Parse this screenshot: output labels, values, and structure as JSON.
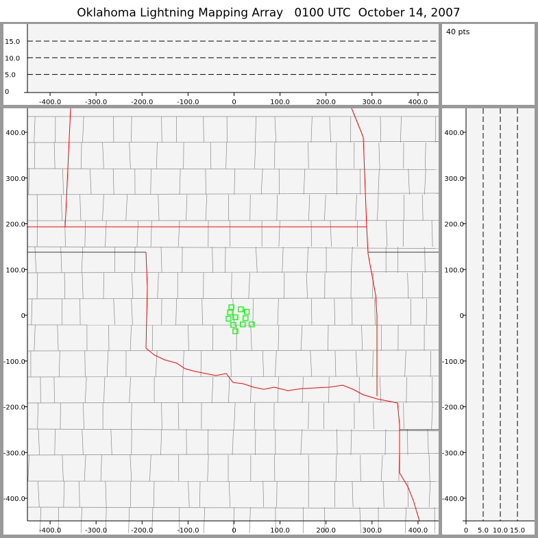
{
  "title": "Oklahoma Lightning Mapping Array   0100 UTC  October 14, 2007",
  "count_label": "40 pts",
  "colors": {
    "points": "#00ff00",
    "state_border": "#ff0000",
    "county": "#888888",
    "plot_bg": "#f4f4f4"
  },
  "chart_data": [
    {
      "type": "scatter",
      "panel": "plan-view",
      "xlim": [
        -450,
        450
      ],
      "ylim": [
        -450,
        450
      ],
      "x_ticks": [
        "-400.0",
        "-300.0",
        "-200.0",
        "-100.0",
        "0",
        "100.0",
        "200.0",
        "300.0",
        "400.0"
      ],
      "y_ticks": [
        "400.0",
        "300.0",
        "200.0",
        "100.0",
        "0",
        "-100.0",
        "-200.0",
        "-300.0",
        "-400.0"
      ],
      "points": [
        [
          -6,
          17.5
        ],
        [
          14.5,
          13
        ],
        [
          27.6,
          7.5
        ],
        [
          -9,
          6
        ],
        [
          2.7,
          -4.5
        ],
        [
          -12,
          -7.5
        ],
        [
          25,
          -6.4
        ],
        [
          -1.8,
          -21
        ],
        [
          19,
          -20
        ],
        [
          38,
          -20
        ],
        [
          2.7,
          -35
        ]
      ]
    },
    {
      "type": "scatter",
      "panel": "altitude-vs-east-west",
      "xlim": [
        -450,
        450
      ],
      "ylim": [
        0,
        20
      ],
      "x_ticks": [
        "-400.0",
        "-300.0",
        "-200.0",
        "-100.0",
        "0",
        "100.0",
        "200.0",
        "300.0",
        "400.0"
      ],
      "y_ticks": [
        "0",
        "5.0",
        "10.0",
        "15.0"
      ],
      "gridlines": [
        5,
        10,
        15
      ]
    },
    {
      "type": "scatter",
      "panel": "north-south-vs-altitude",
      "xlim": [
        0,
        20
      ],
      "ylim": [
        -450,
        450
      ],
      "x_ticks": [
        "0",
        "5.0",
        "10.0",
        "15.0"
      ],
      "y_ticks": [
        "400.0",
        "300.0",
        "200.0",
        "100.0",
        "0",
        "-100.0",
        "-200.0",
        "-300.0",
        "-400.0"
      ],
      "gridlines": [
        5,
        10,
        15
      ]
    }
  ]
}
